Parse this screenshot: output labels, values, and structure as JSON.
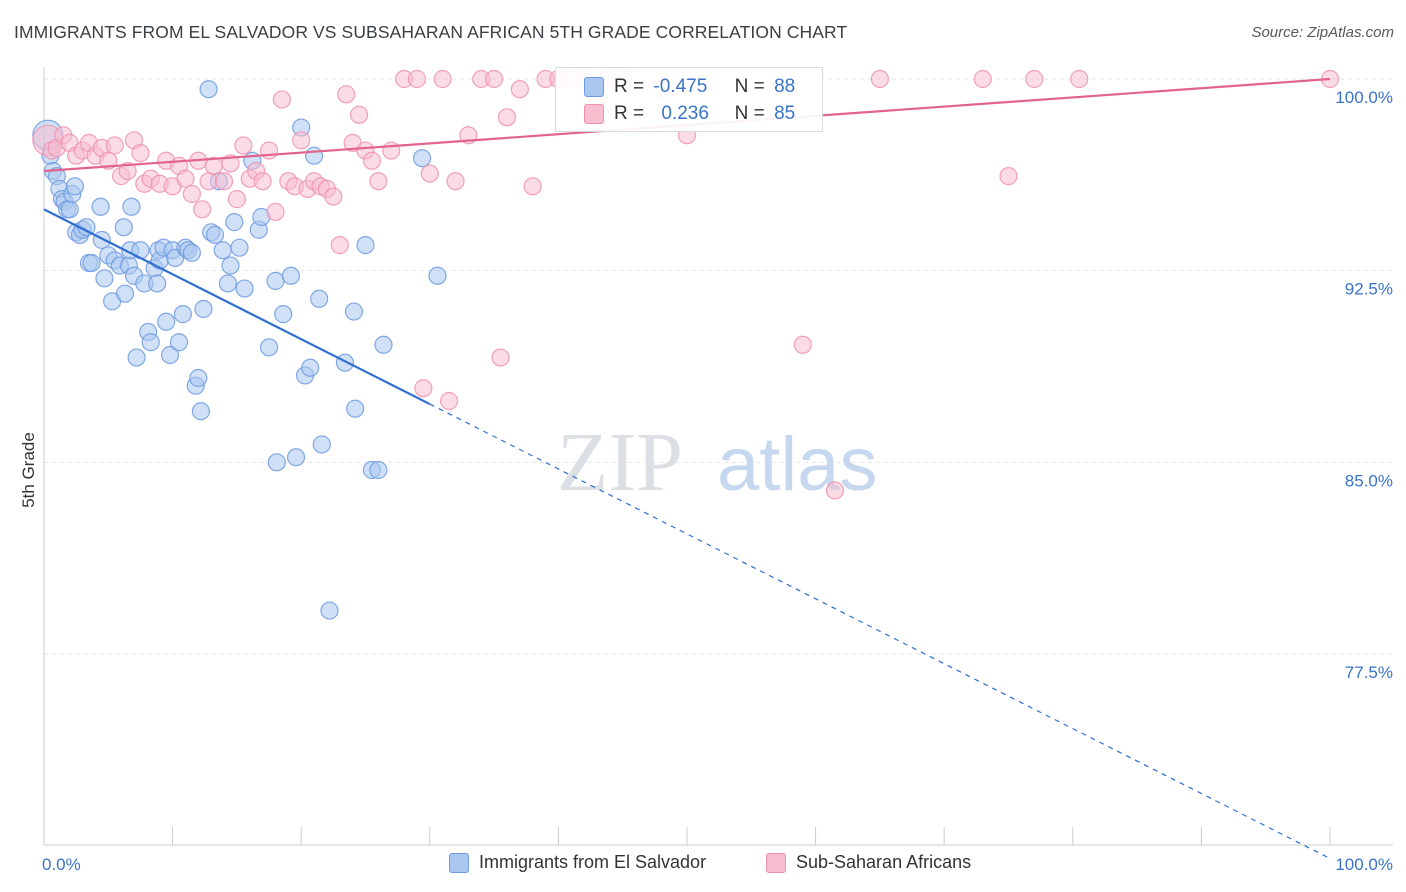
{
  "title": "IMMIGRANTS FROM EL SALVADOR VS SUBSAHARAN AFRICAN 5TH GRADE CORRELATION CHART",
  "source": "Source: ZipAtlas.com",
  "watermark": {
    "zip": "ZIP",
    "atlas": "atlas"
  },
  "legend": {
    "r_label": "R =",
    "n_label": "N =",
    "series": [
      {
        "r": "-0.475",
        "n": "88"
      },
      {
        "r": "0.236",
        "n": "85"
      }
    ]
  },
  "bottom_legend": [
    "Immigrants from El Salvador",
    "Sub-Saharan Africans"
  ],
  "colors": {
    "blue_fill": "#a9c6ef",
    "blue_stroke": "#6d9ae0",
    "blue_line": "#2f6fd0",
    "pink_fill": "#f7bed0",
    "pink_stroke": "#ef90b0",
    "pink_line": "#e2648c",
    "tick_label": "#3a73c8"
  },
  "chart_data": {
    "type": "scatter",
    "title": "IMMIGRANTS FROM EL SALVADOR VS SUBSAHARAN AFRICAN 5TH GRADE CORRELATION CHART",
    "xlabel": "",
    "ylabel": "5th Grade",
    "xlim": [
      0,
      100
    ],
    "ylim": [
      70.0,
      100.8
    ],
    "x_tick_labels": [
      "0.0%",
      "100.0%"
    ],
    "y_ticks": [
      77.5,
      85.0,
      92.5,
      100.0
    ],
    "y_tick_labels": [
      "77.5%",
      "85.0%",
      "92.5%",
      "100.0%"
    ],
    "grid": true,
    "legend_position": "top-center",
    "series": [
      {
        "name": "Immigrants from El Salvador",
        "r": -0.475,
        "n": 88,
        "trend": {
          "x0": 0,
          "y0": 94.9,
          "x1": 100,
          "y1": 69.5,
          "solid_until_x": 30
        },
        "points": [
          [
            0.3,
            97.8
          ],
          [
            0.5,
            97.0
          ],
          [
            0.7,
            96.4
          ],
          [
            1.0,
            96.2
          ],
          [
            1.2,
            95.7
          ],
          [
            1.4,
            95.3
          ],
          [
            1.6,
            95.2
          ],
          [
            1.8,
            94.9
          ],
          [
            2.0,
            94.9
          ],
          [
            2.2,
            95.5
          ],
          [
            2.4,
            95.8
          ],
          [
            2.5,
            94.0
          ],
          [
            2.8,
            93.9
          ],
          [
            3.0,
            94.1
          ],
          [
            3.3,
            94.2
          ],
          [
            3.5,
            92.8
          ],
          [
            3.7,
            92.8
          ],
          [
            4.4,
            95.0
          ],
          [
            4.5,
            93.7
          ],
          [
            4.7,
            92.2
          ],
          [
            5.0,
            93.1
          ],
          [
            5.3,
            91.3
          ],
          [
            5.5,
            92.9
          ],
          [
            5.9,
            92.7
          ],
          [
            6.2,
            94.2
          ],
          [
            6.3,
            91.6
          ],
          [
            6.6,
            92.7
          ],
          [
            6.7,
            93.3
          ],
          [
            6.8,
            95.0
          ],
          [
            7.0,
            92.3
          ],
          [
            7.2,
            89.1
          ],
          [
            7.5,
            93.3
          ],
          [
            7.8,
            92.0
          ],
          [
            8.1,
            90.1
          ],
          [
            8.3,
            89.7
          ],
          [
            8.6,
            92.6
          ],
          [
            8.8,
            92.0
          ],
          [
            8.9,
            93.3
          ],
          [
            9.0,
            92.9
          ],
          [
            9.3,
            93.4
          ],
          [
            9.5,
            90.5
          ],
          [
            9.8,
            89.2
          ],
          [
            10.0,
            93.3
          ],
          [
            10.2,
            93.0
          ],
          [
            10.5,
            89.7
          ],
          [
            10.8,
            90.8
          ],
          [
            11.0,
            93.4
          ],
          [
            11.2,
            93.3
          ],
          [
            11.5,
            93.2
          ],
          [
            11.8,
            88.0
          ],
          [
            12.0,
            88.3
          ],
          [
            12.2,
            87.0
          ],
          [
            12.4,
            91.0
          ],
          [
            13.0,
            94.0
          ],
          [
            13.3,
            93.9
          ],
          [
            13.6,
            96.0
          ],
          [
            13.9,
            93.3
          ],
          [
            14.3,
            92.0
          ],
          [
            14.5,
            92.7
          ],
          [
            14.8,
            94.4
          ],
          [
            15.2,
            93.4
          ],
          [
            15.6,
            91.8
          ],
          [
            16.2,
            96.8
          ],
          [
            16.7,
            94.1
          ],
          [
            16.9,
            94.6
          ],
          [
            17.5,
            89.5
          ],
          [
            18.0,
            92.1
          ],
          [
            18.1,
            85.0
          ],
          [
            18.6,
            90.8
          ],
          [
            19.2,
            92.3
          ],
          [
            19.6,
            85.2
          ],
          [
            20.0,
            98.1
          ],
          [
            20.3,
            88.4
          ],
          [
            20.7,
            88.7
          ],
          [
            21.0,
            97.0
          ],
          [
            21.4,
            91.4
          ],
          [
            21.6,
            85.7
          ],
          [
            22.2,
            79.2
          ],
          [
            23.4,
            88.9
          ],
          [
            24.1,
            90.9
          ],
          [
            24.2,
            87.1
          ],
          [
            25.0,
            93.5
          ],
          [
            25.5,
            84.7
          ],
          [
            26.0,
            84.7
          ],
          [
            26.4,
            89.6
          ],
          [
            29.4,
            96.9
          ],
          [
            30.6,
            92.3
          ],
          [
            12.8,
            99.6
          ]
        ]
      },
      {
        "name": "Sub-Saharan Africans",
        "r": 0.236,
        "n": 85,
        "trend": {
          "x0": 0,
          "y0": 96.4,
          "x1": 100,
          "y1": 100.0
        },
        "points": [
          [
            0.3,
            97.6
          ],
          [
            0.6,
            97.2
          ],
          [
            1.0,
            97.3
          ],
          [
            1.5,
            97.8
          ],
          [
            2.0,
            97.5
          ],
          [
            2.5,
            97.0
          ],
          [
            3.0,
            97.2
          ],
          [
            3.5,
            97.5
          ],
          [
            4.0,
            97.0
          ],
          [
            4.5,
            97.3
          ],
          [
            5.0,
            96.8
          ],
          [
            5.5,
            97.4
          ],
          [
            6.0,
            96.2
          ],
          [
            6.5,
            96.4
          ],
          [
            7.0,
            97.6
          ],
          [
            7.5,
            97.1
          ],
          [
            7.8,
            95.9
          ],
          [
            8.3,
            96.1
          ],
          [
            9.0,
            95.9
          ],
          [
            9.5,
            96.8
          ],
          [
            10.0,
            95.8
          ],
          [
            10.5,
            96.6
          ],
          [
            11.0,
            96.1
          ],
          [
            11.5,
            95.5
          ],
          [
            12.0,
            96.8
          ],
          [
            12.3,
            94.9
          ],
          [
            12.8,
            96.0
          ],
          [
            13.2,
            96.6
          ],
          [
            14.0,
            96.0
          ],
          [
            14.5,
            96.7
          ],
          [
            15.0,
            95.3
          ],
          [
            15.5,
            97.4
          ],
          [
            16.0,
            96.1
          ],
          [
            16.5,
            96.4
          ],
          [
            17.0,
            96.0
          ],
          [
            17.5,
            97.2
          ],
          [
            18.0,
            94.8
          ],
          [
            18.5,
            99.2
          ],
          [
            19.0,
            96.0
          ],
          [
            19.5,
            95.8
          ],
          [
            20.0,
            97.6
          ],
          [
            20.5,
            95.7
          ],
          [
            21.0,
            96.0
          ],
          [
            21.5,
            95.8
          ],
          [
            22.0,
            95.7
          ],
          [
            22.5,
            95.4
          ],
          [
            23.0,
            93.5
          ],
          [
            23.5,
            99.4
          ],
          [
            24.0,
            97.5
          ],
          [
            24.5,
            98.6
          ],
          [
            25.0,
            97.2
          ],
          [
            25.5,
            96.8
          ],
          [
            26.0,
            96.0
          ],
          [
            27.0,
            97.2
          ],
          [
            28.0,
            100.0
          ],
          [
            29.0,
            100.0
          ],
          [
            29.5,
            87.9
          ],
          [
            30.0,
            96.3
          ],
          [
            31.0,
            100.0
          ],
          [
            31.5,
            87.4
          ],
          [
            32.0,
            96.0
          ],
          [
            33.0,
            97.8
          ],
          [
            34.0,
            100.0
          ],
          [
            35.0,
            100.0
          ],
          [
            35.5,
            89.1
          ],
          [
            36.0,
            98.5
          ],
          [
            37.0,
            99.6
          ],
          [
            38.0,
            95.8
          ],
          [
            39.0,
            100.0
          ],
          [
            40.0,
            100.0
          ],
          [
            41.0,
            100.0
          ],
          [
            42.0,
            100.0
          ],
          [
            43.0,
            99.3
          ],
          [
            44.0,
            100.0
          ],
          [
            45.0,
            100.0
          ],
          [
            48.0,
            99.6
          ],
          [
            50.0,
            97.8
          ],
          [
            59.0,
            89.6
          ],
          [
            61.5,
            83.9
          ],
          [
            65.0,
            100.0
          ],
          [
            73.0,
            100.0
          ],
          [
            75.0,
            96.2
          ],
          [
            77.0,
            100.0
          ],
          [
            80.5,
            100.0
          ],
          [
            100.0,
            100.0
          ]
        ]
      }
    ]
  }
}
